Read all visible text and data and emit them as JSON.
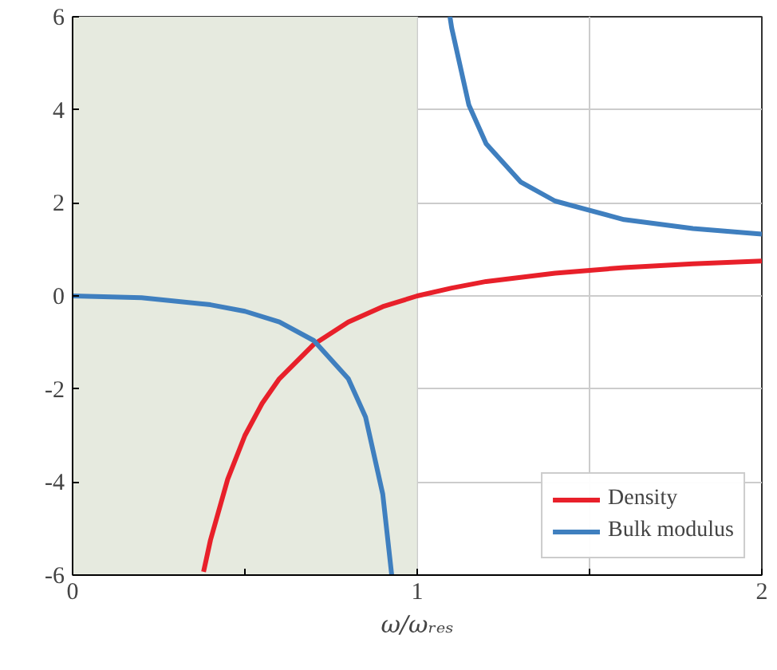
{
  "chart_data": {
    "type": "line",
    "xlabel": "ω/ωᵣₑₛ",
    "xlim": [
      0,
      2
    ],
    "ylim": [
      -6,
      6
    ],
    "xticks": [
      0,
      {
        "value": 0.5,
        "label": null
      },
      1,
      {
        "value": 1.5,
        "label": null
      },
      2
    ],
    "yticks": [
      -6,
      -4,
      -2,
      0,
      2,
      4,
      6
    ],
    "grid": true,
    "legend": "bottom right",
    "line_style": "solid",
    "marker": "none",
    "bands": [
      {
        "axis": "x",
        "from": 0,
        "to": 1,
        "color": "#e6eadf"
      }
    ],
    "series": [
      {
        "name": "Density",
        "color": "#e8202a",
        "x": [
          0.38,
          0.4,
          0.45,
          0.5,
          0.55,
          0.6,
          0.7,
          0.8,
          0.9,
          1.0,
          1.1,
          1.2,
          1.4,
          1.6,
          1.8,
          2.0
        ],
        "values": [
          -5.93,
          -5.25,
          -3.94,
          -3.0,
          -2.31,
          -1.78,
          -1.04,
          -0.56,
          -0.23,
          0.0,
          0.17,
          0.31,
          0.49,
          0.61,
          0.69,
          0.75
        ]
      },
      {
        "name": "Bulk modulus",
        "color": "#3f7fbf",
        "x": [
          0,
          0.2,
          0.4,
          0.5,
          0.6,
          0.7,
          0.8,
          0.85,
          0.9,
          0.926,
          1.0,
          1.095,
          1.1,
          1.15,
          1.2,
          1.3,
          1.4,
          1.6,
          1.8,
          2.0
        ],
        "values": [
          0.0,
          -0.04,
          -0.19,
          -0.33,
          -0.56,
          -0.96,
          -1.78,
          -2.6,
          -4.26,
          -6.0,
          null,
          6.0,
          5.76,
          4.1,
          3.27,
          2.45,
          2.04,
          1.64,
          1.45,
          1.33
        ]
      }
    ]
  }
}
